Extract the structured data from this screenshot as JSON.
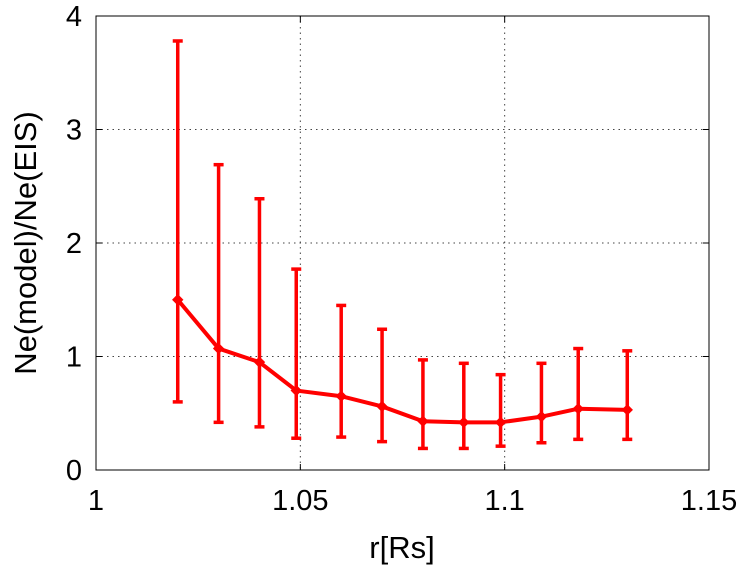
{
  "chart_data": {
    "type": "line",
    "title": "",
    "xlabel": "r[Rs]",
    "ylabel": "Ne(model)/Ne(EIS)",
    "xlim": [
      1,
      1.15
    ],
    "ylim": [
      0,
      4
    ],
    "xticks": [
      1,
      1.05,
      1.1,
      1.15
    ],
    "xtick_labels": [
      "1",
      "1.05",
      "1.1",
      "1.15"
    ],
    "yticks": [
      0,
      1,
      2,
      3,
      4
    ],
    "ytick_labels": [
      "0",
      "1",
      "2",
      "3",
      "4"
    ],
    "grid": true,
    "series": [
      {
        "color": "#ff0000",
        "x": [
          1.02,
          1.03,
          1.04,
          1.049,
          1.06,
          1.07,
          1.08,
          1.09,
          1.099,
          1.109,
          1.118,
          1.13
        ],
        "y": [
          1.5,
          1.07,
          0.95,
          0.7,
          0.65,
          0.56,
          0.43,
          0.42,
          0.42,
          0.47,
          0.54,
          0.53
        ],
        "err_low": [
          0.6,
          0.42,
          0.38,
          0.28,
          0.29,
          0.25,
          0.19,
          0.19,
          0.21,
          0.24,
          0.27,
          0.27
        ],
        "err_high": [
          3.78,
          2.69,
          2.39,
          1.77,
          1.45,
          1.24,
          0.97,
          0.94,
          0.84,
          0.94,
          1.07,
          1.05
        ]
      }
    ]
  }
}
